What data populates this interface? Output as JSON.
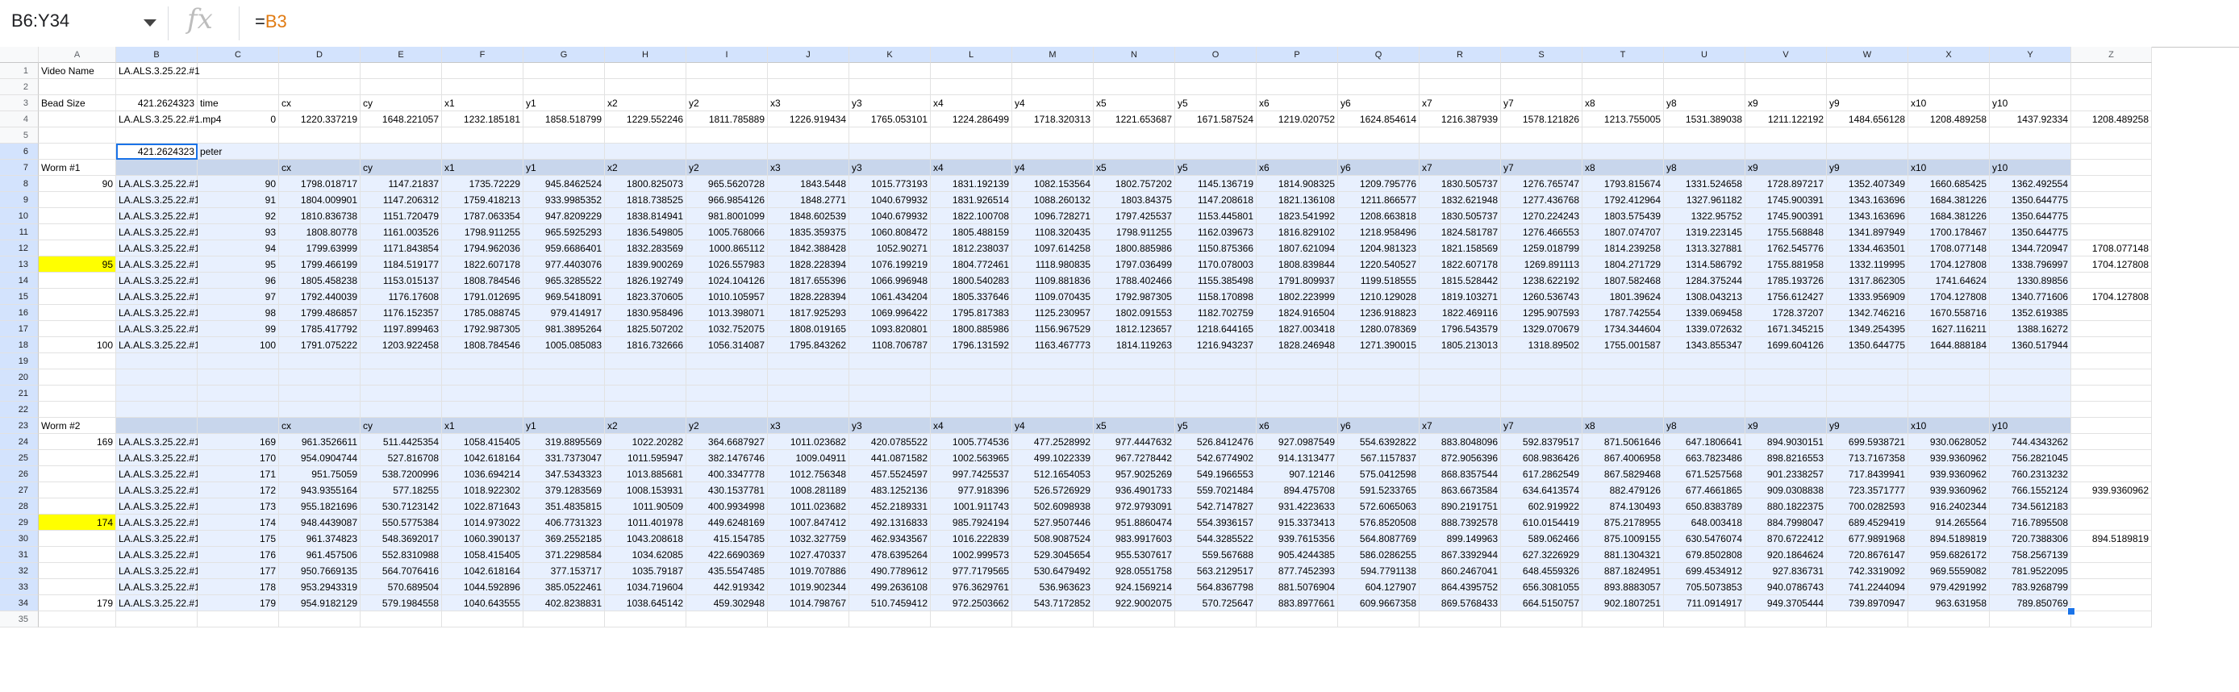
{
  "formula_bar": {
    "name_box": "B6:Y34",
    "fx_label": "fx",
    "formula_prefix": "=",
    "formula_ref": "B3"
  },
  "colors": {
    "range_fill": "#e8f0fe",
    "header_fill": "#c8d6ec",
    "highlight": "#ffff00",
    "accent": "#1a73e8"
  },
  "columns": [
    "A",
    "B",
    "C",
    "D",
    "E",
    "F",
    "G",
    "H",
    "I",
    "J",
    "K",
    "L",
    "M",
    "N",
    "O",
    "P",
    "Q",
    "R",
    "S",
    "T",
    "U",
    "V",
    "W",
    "X",
    "Y",
    "Z"
  ],
  "header_labels": [
    "",
    "",
    "cx",
    "cy",
    "x1",
    "y1",
    "x2",
    "y2",
    "x3",
    "y3",
    "x4",
    "y4",
    "x5",
    "y5",
    "x6",
    "y6",
    "x7",
    "y7",
    "x8",
    "y8",
    "x9",
    "y9",
    "x10",
    "y10"
  ],
  "cells": {
    "r1": {
      "A": "Video Name",
      "B": "LA.ALS.3.25.22.#1"
    },
    "r3": {
      "A": "Bead Size",
      "B": "421.2624323",
      "C": "time",
      "D": "cx",
      "E": "cy",
      "F": "x1",
      "G": "y1",
      "H": "x2",
      "I": "y2",
      "J": "x3",
      "K": "y3",
      "L": "x4",
      "M": "y4",
      "N": "x5",
      "O": "y5",
      "P": "x6",
      "Q": "y6",
      "R": "x7",
      "S": "y7",
      "T": "x8",
      "U": "y8",
      "V": "x9",
      "W": "y9",
      "X": "x10",
      "Y": "y10"
    },
    "r4": [
      "LA.ALS.3.25.22.#1.mp4",
      "0",
      "1220.337219",
      "1648.221057",
      "1232.185181",
      "1858.518799",
      "1229.552246",
      "1811.785889",
      "1226.919434",
      "1765.053101",
      "1224.286499",
      "1718.320313",
      "1221.653687",
      "1671.587524",
      "1219.020752",
      "1624.854614",
      "1216.387939",
      "1578.121826",
      "1213.755005",
      "1531.389038",
      "1211.122192",
      "1484.656128",
      "1208.489258",
      "1437.92334",
      "1208.489258"
    ],
    "r6": {
      "B": "421.2624323",
      "C": "peter"
    },
    "r7": {
      "A": "Worm #1"
    },
    "r23": {
      "A": "Worm #2"
    }
  },
  "block1": {
    "labels": {
      "r8": "90",
      "r13": "95",
      "r18": "100"
    },
    "rows": [
      [
        "LA.ALS.3.25.22.#1.mp4",
        "90",
        "1798.018717",
        "1147.21837",
        "1735.72229",
        "945.8462524",
        "1800.825073",
        "965.5620728",
        "1843.5448",
        "1015.773193",
        "1831.192139",
        "1082.153564",
        "1802.757202",
        "1145.136719",
        "1814.908325",
        "1209.795776",
        "1830.505737",
        "1276.765747",
        "1793.815674",
        "1331.524658",
        "1728.897217",
        "1352.407349",
        "1660.685425",
        "1362.492554",
        ""
      ],
      [
        "LA.ALS.3.25.22.#1.mp4",
        "91",
        "1804.009901",
        "1147.206312",
        "1759.418213",
        "933.9985352",
        "1818.738525",
        "966.9854126",
        "1848.2771",
        "1040.679932",
        "1831.926514",
        "1088.260132",
        "1803.84375",
        "1147.208618",
        "1821.136108",
        "1211.866577",
        "1832.621948",
        "1277.436768",
        "1792.412964",
        "1327.961182",
        "1745.900391",
        "1343.163696",
        "1684.381226",
        "1350.644775",
        ""
      ],
      [
        "LA.ALS.3.25.22.#1.mp4",
        "92",
        "1810.836738",
        "1151.720479",
        "1787.063354",
        "947.8209229",
        "1838.814941",
        "981.8001099",
        "1848.602539",
        "1040.679932",
        "1822.100708",
        "1096.728271",
        "1797.425537",
        "1153.445801",
        "1823.541992",
        "1208.663818",
        "1830.505737",
        "1270.224243",
        "1803.575439",
        "1322.95752",
        "1745.900391",
        "1343.163696",
        "1684.381226",
        "1350.644775",
        ""
      ],
      [
        "LA.ALS.3.25.22.#1.mp4",
        "93",
        "1808.80778",
        "1161.003526",
        "1798.911255",
        "965.5925293",
        "1836.549805",
        "1005.768066",
        "1835.359375",
        "1060.808472",
        "1805.488159",
        "1108.320435",
        "1798.911255",
        "1162.039673",
        "1816.829102",
        "1218.958496",
        "1824.581787",
        "1276.466553",
        "1807.074707",
        "1319.223145",
        "1755.568848",
        "1341.897949",
        "1700.178467",
        "1350.644775",
        ""
      ],
      [
        "LA.ALS.3.25.22.#1.mp4",
        "94",
        "1799.63999",
        "1171.843854",
        "1794.962036",
        "959.6686401",
        "1832.283569",
        "1000.865112",
        "1842.388428",
        "1052.90271",
        "1812.238037",
        "1097.614258",
        "1800.885986",
        "1150.875366",
        "1807.621094",
        "1204.981323",
        "1821.158569",
        "1259.018799",
        "1814.239258",
        "1313.327881",
        "1762.545776",
        "1334.463501",
        "1708.077148",
        "1344.720947",
        "1708.077148"
      ],
      [
        "LA.ALS.3.25.22.#1.mp4",
        "95",
        "1799.466199",
        "1184.519177",
        "1822.607178",
        "977.4403076",
        "1839.900269",
        "1026.557983",
        "1828.228394",
        "1076.199219",
        "1804.772461",
        "1118.980835",
        "1797.036499",
        "1170.078003",
        "1808.839844",
        "1220.540527",
        "1822.607178",
        "1269.891113",
        "1804.271729",
        "1314.586792",
        "1755.881958",
        "1332.119995",
        "1704.127808",
        "1338.796997",
        "1704.127808"
      ],
      [
        "LA.ALS.3.25.22.#1.mp4",
        "96",
        "1805.458238",
        "1153.015137",
        "1808.784546",
        "965.3285522",
        "1826.192749",
        "1024.104126",
        "1817.655396",
        "1066.996948",
        "1800.540283",
        "1109.881836",
        "1788.402466",
        "1155.385498",
        "1791.809937",
        "1199.518555",
        "1815.528442",
        "1238.622192",
        "1807.582468",
        "1284.375244",
        "1785.193726",
        "1317.862305",
        "1741.64624",
        "1330.89856",
        ""
      ],
      [
        "LA.ALS.3.25.22.#1.mp4",
        "97",
        "1792.440039",
        "1176.17608",
        "1791.012695",
        "969.5418091",
        "1823.370605",
        "1010.105957",
        "1828.228394",
        "1061.434204",
        "1805.337646",
        "1109.070435",
        "1792.987305",
        "1158.170898",
        "1802.223999",
        "1210.129028",
        "1819.103271",
        "1260.536743",
        "1801.39624",
        "1308.043213",
        "1756.612427",
        "1333.956909",
        "1704.127808",
        "1340.771606",
        "1704.127808"
      ],
      [
        "LA.ALS.3.25.22.#1.mp4",
        "98",
        "1799.486857",
        "1176.152357",
        "1785.088745",
        "979.414917",
        "1830.958496",
        "1013.398071",
        "1817.925293",
        "1069.996422",
        "1795.817383",
        "1125.230957",
        "1802.091553",
        "1182.702759",
        "1824.916504",
        "1236.918823",
        "1822.469116",
        "1295.907593",
        "1787.742554",
        "1339.069458",
        "1728.37207",
        "1342.746216",
        "1670.558716",
        "1352.619385",
        ""
      ],
      [
        "LA.ALS.3.25.22.#1.mp4",
        "99",
        "1785.417792",
        "1197.899463",
        "1792.987305",
        "981.3895264",
        "1825.507202",
        "1032.752075",
        "1808.019165",
        "1093.820801",
        "1800.885986",
        "1156.967529",
        "1812.123657",
        "1218.644165",
        "1827.003418",
        "1280.078369",
        "1796.543579",
        "1329.070679",
        "1734.344604",
        "1339.072632",
        "1671.345215",
        "1349.254395",
        "1627.116211",
        "1388.16272",
        ""
      ],
      [
        "LA.ALS.3.25.22.#1.mp4",
        "100",
        "1791.075222",
        "1203.922458",
        "1808.784546",
        "1005.085083",
        "1816.732666",
        "1056.314087",
        "1795.843262",
        "1108.706787",
        "1796.131592",
        "1163.467773",
        "1814.119263",
        "1216.943237",
        "1828.246948",
        "1271.390015",
        "1805.213013",
        "1318.89502",
        "1755.001587",
        "1343.855347",
        "1699.604126",
        "1350.644775",
        "1644.888184",
        "1360.517944",
        ""
      ]
    ]
  },
  "block2": {
    "labels": {
      "r24": "169",
      "r29": "174",
      "r34": "179"
    },
    "rows": [
      [
        "LA.ALS.3.25.22.#1.mp4",
        "169",
        "961.3526611",
        "511.4425354",
        "1058.415405",
        "319.8895569",
        "1022.20282",
        "364.6687927",
        "1011.023682",
        "420.0785522",
        "1005.774536",
        "477.2528992",
        "977.4447632",
        "526.8412476",
        "927.0987549",
        "554.6392822",
        "883.8048096",
        "592.8379517",
        "871.5061646",
        "647.1806641",
        "894.9030151",
        "699.5938721",
        "930.0628052",
        "744.4343262",
        ""
      ],
      [
        "LA.ALS.3.25.22.#1.mp4",
        "170",
        "954.0904744",
        "527.816708",
        "1042.618164",
        "331.7373047",
        "1011.595947",
        "382.1476746",
        "1009.04911",
        "441.0871582",
        "1002.563965",
        "499.1022339",
        "967.7278442",
        "542.6774902",
        "914.1313477",
        "567.1157837",
        "872.9056396",
        "608.9836426",
        "867.4006958",
        "663.7823486",
        "898.8216553",
        "713.7167358",
        "939.9360962",
        "756.2821045",
        ""
      ],
      [
        "LA.ALS.3.25.22.#1.mp4",
        "171",
        "951.75059",
        "538.7200996",
        "1036.694214",
        "347.5343323",
        "1013.885681",
        "400.3347778",
        "1012.756348",
        "457.5524597",
        "997.7425537",
        "512.1654053",
        "957.9025269",
        "549.1966553",
        "907.12146",
        "575.0412598",
        "868.8357544",
        "617.2862549",
        "867.5829468",
        "671.5257568",
        "901.2338257",
        "717.8439941",
        "939.9360962",
        "760.2313232",
        ""
      ],
      [
        "LA.ALS.3.25.22.#1.mp4",
        "172",
        "943.9355164",
        "577.18255",
        "1018.922302",
        "379.1283569",
        "1008.153931",
        "430.1537781",
        "1008.281189",
        "483.1252136",
        "977.918396",
        "526.5726929",
        "936.4901733",
        "559.7021484",
        "894.475708",
        "591.5233765",
        "863.6673584",
        "634.6413574",
        "882.479126",
        "677.4661865",
        "909.0308838",
        "723.3571777",
        "939.9360962",
        "766.1552124",
        "939.9360962"
      ],
      [
        "LA.ALS.3.25.22.#1.mp4",
        "173",
        "955.1821696",
        "530.7123142",
        "1022.871643",
        "351.4835815",
        "1011.90509",
        "400.9934998",
        "1011.023682",
        "452.2189331",
        "1001.911743",
        "502.6098938",
        "972.9793091",
        "542.7147827",
        "931.4223633",
        "572.6065063",
        "890.2191751",
        "602.919922",
        "874.130493",
        "650.8383789",
        "880.1822375",
        "700.0282593",
        "916.2402344",
        "734.5612183",
        ""
      ],
      [
        "LA.ALS.3.25.22.#1.mp4",
        "174",
        "948.4439087",
        "550.5775384",
        "1014.973022",
        "406.7731323",
        "1011.401978",
        "449.6248169",
        "1007.847412",
        "492.1316833",
        "985.7924194",
        "527.9507446",
        "951.8860474",
        "554.3936157",
        "915.3373413",
        "576.8520508",
        "888.7392578",
        "610.0154419",
        "875.2178955",
        "648.003418",
        "884.7998047",
        "689.4529419",
        "914.265564",
        "716.7895508",
        ""
      ],
      [
        "LA.ALS.3.25.22.#1.mp4",
        "175",
        "961.374823",
        "548.3692017",
        "1060.390137",
        "369.2552185",
        "1043.208618",
        "415.154785",
        "1032.327759",
        "462.9343567",
        "1016.222839",
        "508.9087524",
        "983.9917603",
        "544.3285522",
        "939.7615356",
        "564.8087769",
        "899.149963",
        "589.062466",
        "875.1009155",
        "630.5476074",
        "870.6722412",
        "677.9891968",
        "894.5189819",
        "720.7388306",
        "894.5189819"
      ],
      [
        "LA.ALS.3.25.22.#1.mp4",
        "176",
        "961.457506",
        "552.8310988",
        "1058.415405",
        "371.2298584",
        "1034.62085",
        "422.6690369",
        "1027.470337",
        "478.6395264",
        "1002.999573",
        "529.3045654",
        "955.5307617",
        "559.567688",
        "905.4244385",
        "586.0286255",
        "867.3392944",
        "627.3226929",
        "881.1304321",
        "679.8502808",
        "920.1864624",
        "720.8676147",
        "959.6826172",
        "758.2567139",
        ""
      ],
      [
        "LA.ALS.3.25.22.#1.mp4",
        "177",
        "950.7669135",
        "564.7076416",
        "1042.618164",
        "377.153717",
        "1035.79187",
        "435.5547485",
        "1019.707886",
        "490.7789612",
        "977.7179565",
        "530.6479492",
        "928.0551758",
        "563.2129517",
        "877.7452393",
        "594.7791138",
        "860.2467041",
        "648.4559326",
        "887.1824951",
        "699.4534912",
        "927.836731",
        "742.3319092",
        "969.5559082",
        "781.9522095",
        ""
      ],
      [
        "LA.ALS.3.25.22.#1.mp4",
        "178",
        "953.2943319",
        "570.689504",
        "1044.592896",
        "385.0522461",
        "1034.719604",
        "442.919342",
        "1019.902344",
        "499.2636108",
        "976.3629761",
        "536.963623",
        "924.1569214",
        "564.8367798",
        "881.5076904",
        "604.127907",
        "864.4395752",
        "656.3081055",
        "893.8883057",
        "705.5073853",
        "940.0786743",
        "741.2244094",
        "979.4291992",
        "783.9268799",
        ""
      ],
      [
        "LA.ALS.3.25.22.#1.mp4",
        "179",
        "954.9182129",
        "579.1984558",
        "1040.643555",
        "402.8238831",
        "1038.645142",
        "459.302948",
        "1014.798767",
        "510.7459412",
        "972.2503662",
        "543.7172852",
        "922.9002075",
        "570.725647",
        "883.8977661",
        "609.9667358",
        "869.5768433",
        "664.5150757",
        "902.1807251",
        "711.0914917",
        "949.3705444",
        "739.8970947",
        "963.631958",
        "789.850769",
        ""
      ]
    ]
  }
}
